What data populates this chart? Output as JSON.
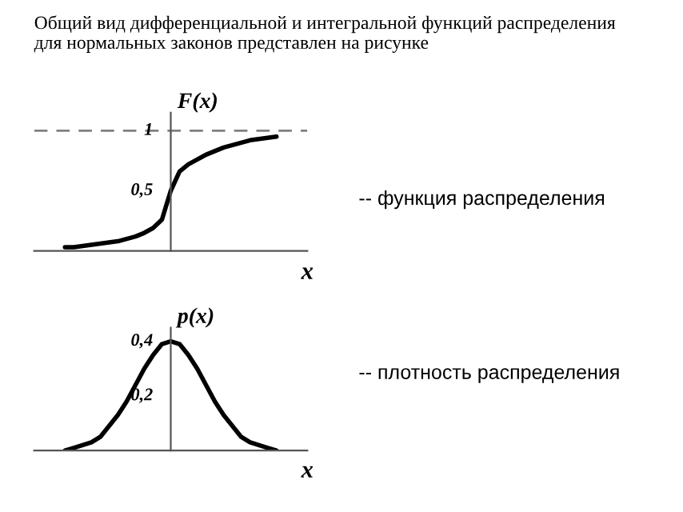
{
  "chart_data": [
    {
      "type": "line",
      "title": "Общий вид дифференциальной и интегральной функций распределения\nдля нормальных законов представлен на рисунке",
      "xlabel": "x",
      "ylabel": "F(x)",
      "tick_labels": "y",
      "categories": [
        null,
        null,
        null,
        null,
        null,
        null,
        null,
        null,
        null,
        null,
        null,
        null,
        null,
        null,
        null,
        null,
        null,
        null,
        null,
        null,
        null,
        null,
        null,
        null,
        null
      ],
      "series": [
        {
          "color": "#000000",
          "values": [
            0.03,
            0.03,
            0.04,
            0.05,
            0.06,
            0.07,
            0.08,
            0.1,
            0.12,
            0.15,
            0.19,
            0.26,
            0.5,
            0.66,
            0.72,
            0.76,
            0.8,
            0.83,
            0.86,
            0.88,
            0.9,
            0.92,
            0.93,
            0.94,
            0.95
          ]
        }
      ],
      "ylim": [
        0,
        1.15
      ],
      "yticks": [
        {
          "value": 0.5,
          "label": "0,5"
        },
        1
      ],
      "ref_lines": [
        {
          "axis": "y",
          "value": 1,
          "color": "#808080",
          "line_style": "dashed"
        }
      ],
      "annotations": [
        "-- функция распределения"
      ]
    },
    {
      "type": "line",
      "xlabel": "x",
      "ylabel": "p(x)",
      "tick_labels": "y",
      "categories": [
        null,
        null,
        null,
        null,
        null,
        null,
        null,
        null,
        null,
        null,
        null,
        null,
        null,
        null,
        null,
        null,
        null,
        null,
        null,
        null,
        null,
        null,
        null,
        null,
        null
      ],
      "series": [
        {
          "color": "#000000",
          "values": [
            0.0,
            0.01,
            0.02,
            0.03,
            0.05,
            0.09,
            0.13,
            0.18,
            0.24,
            0.3,
            0.35,
            0.39,
            0.4,
            0.39,
            0.35,
            0.3,
            0.24,
            0.18,
            0.13,
            0.09,
            0.05,
            0.03,
            0.02,
            0.01,
            0.0
          ]
        }
      ],
      "ylim": [
        0,
        0.45
      ],
      "yticks": [
        {
          "value": 0.2,
          "label": "0,2"
        },
        {
          "value": 0.4,
          "label": "0,4"
        }
      ],
      "annotations": [
        "-- плотность распределения"
      ]
    }
  ]
}
